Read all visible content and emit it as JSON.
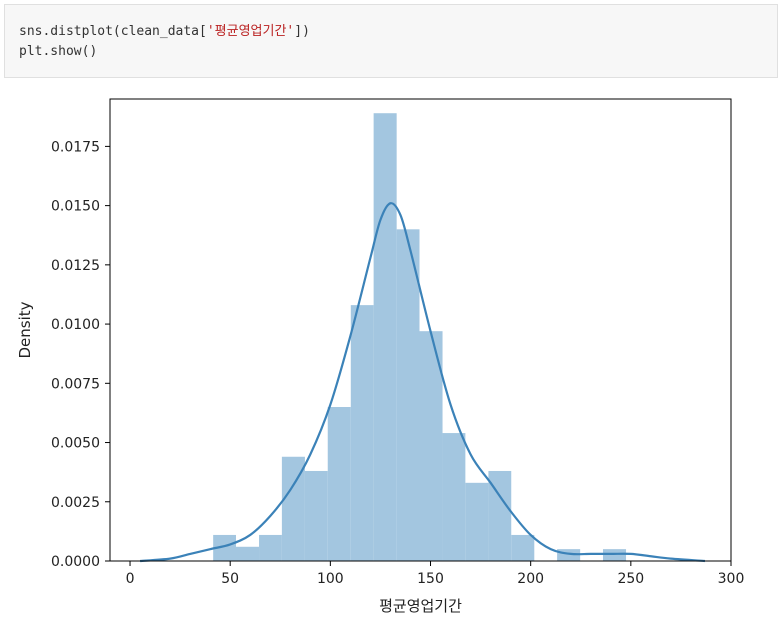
{
  "code": {
    "line1_prefix": "sns.distplot(clean_data[",
    "line1_string": "'평균영업기간'",
    "line1_suffix": "])",
    "line2": "plt.show()"
  },
  "colors": {
    "bar": "#a3c6e0",
    "kde_line": "#3b82b8",
    "string_token": "#ba2121",
    "code_bg": "#f7f7f7"
  },
  "chart_data": {
    "type": "bar",
    "xlabel": "평균영업기간",
    "ylabel": "Density",
    "xlim": [
      -10,
      300
    ],
    "ylim": [
      0,
      0.0195
    ],
    "x_ticks": [
      0,
      50,
      100,
      150,
      200,
      250,
      300
    ],
    "x_tick_labels": [
      "0",
      "50",
      "100",
      "150",
      "200",
      "250",
      "300"
    ],
    "y_ticks": [
      0,
      0.0025,
      0.005,
      0.0075,
      0.01,
      0.0125,
      0.015,
      0.0175
    ],
    "y_tick_labels": [
      "0.0000",
      "0.0025",
      "0.0050",
      "0.0075",
      "0.0100",
      "0.0125",
      "0.0150",
      "0.0175"
    ],
    "grid": false,
    "histogram": {
      "bin_edges": [
        41.5,
        52.9,
        64.4,
        75.8,
        87.3,
        98.7,
        110.2,
        121.6,
        133.1,
        144.5,
        156.0,
        167.4,
        178.9,
        190.3,
        201.8,
        213.2,
        224.7,
        236.1,
        247.6,
        259.0
      ],
      "densities": [
        0.0011,
        0.0006,
        0.0011,
        0.0044,
        0.0038,
        0.0065,
        0.0108,
        0.0189,
        0.014,
        0.0097,
        0.0054,
        0.0033,
        0.0038,
        0.0011,
        0.0,
        0.0005,
        0.0,
        0.0005,
        0.0
      ]
    },
    "kde": {
      "x": [
        5,
        20,
        30,
        40,
        50,
        60,
        70,
        80,
        90,
        100,
        110,
        120,
        125,
        130,
        135,
        140,
        150,
        160,
        170,
        180,
        190,
        200,
        210,
        220,
        230,
        240,
        250,
        260,
        270,
        287
      ],
      "y": [
        0.0,
        0.0001,
        0.0003,
        0.0005,
        0.0007,
        0.0011,
        0.0019,
        0.003,
        0.0045,
        0.0066,
        0.0095,
        0.0128,
        0.0144,
        0.0151,
        0.0146,
        0.0131,
        0.0097,
        0.0066,
        0.0045,
        0.0033,
        0.0021,
        0.0011,
        0.0005,
        0.0003,
        0.0003,
        0.0003,
        0.0003,
        0.0002,
        0.0001,
        0.0
      ]
    }
  }
}
